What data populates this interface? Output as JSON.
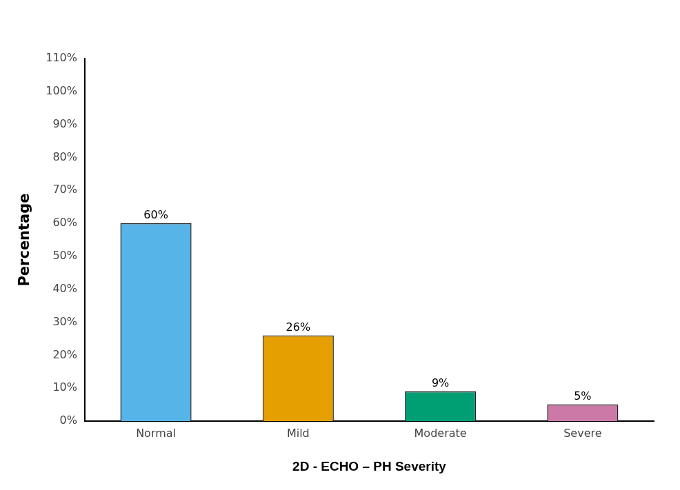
{
  "chart_data": {
    "type": "bar",
    "x_label": "2D - ECHO – PH Severity",
    "y_label": "Percentage",
    "categories": [
      "Normal",
      "Mild",
      "Moderate",
      "Severe"
    ],
    "values": [
      60,
      26,
      9,
      5
    ],
    "value_labels": [
      "60%",
      "26%",
      "9%",
      "5%"
    ],
    "colors": [
      "#56b4e9",
      "#e69f00",
      "#009e73",
      "#cc79a7"
    ],
    "ylim": [
      0,
      110
    ],
    "yticks": [
      {
        "value": 0,
        "label": "0%"
      },
      {
        "value": 10,
        "label": "10%"
      },
      {
        "value": 20,
        "label": "20%"
      },
      {
        "value": 30,
        "label": "30%"
      },
      {
        "value": 40,
        "label": "40%"
      },
      {
        "value": 50,
        "label": "50%"
      },
      {
        "value": 60,
        "label": "60%"
      },
      {
        "value": 70,
        "label": "70%"
      },
      {
        "value": 80,
        "label": "80%"
      },
      {
        "value": 90,
        "label": "90%"
      },
      {
        "value": 100,
        "label": "100%"
      },
      {
        "value": 110,
        "label": "110%"
      }
    ],
    "grid": false,
    "data_labels": true
  }
}
